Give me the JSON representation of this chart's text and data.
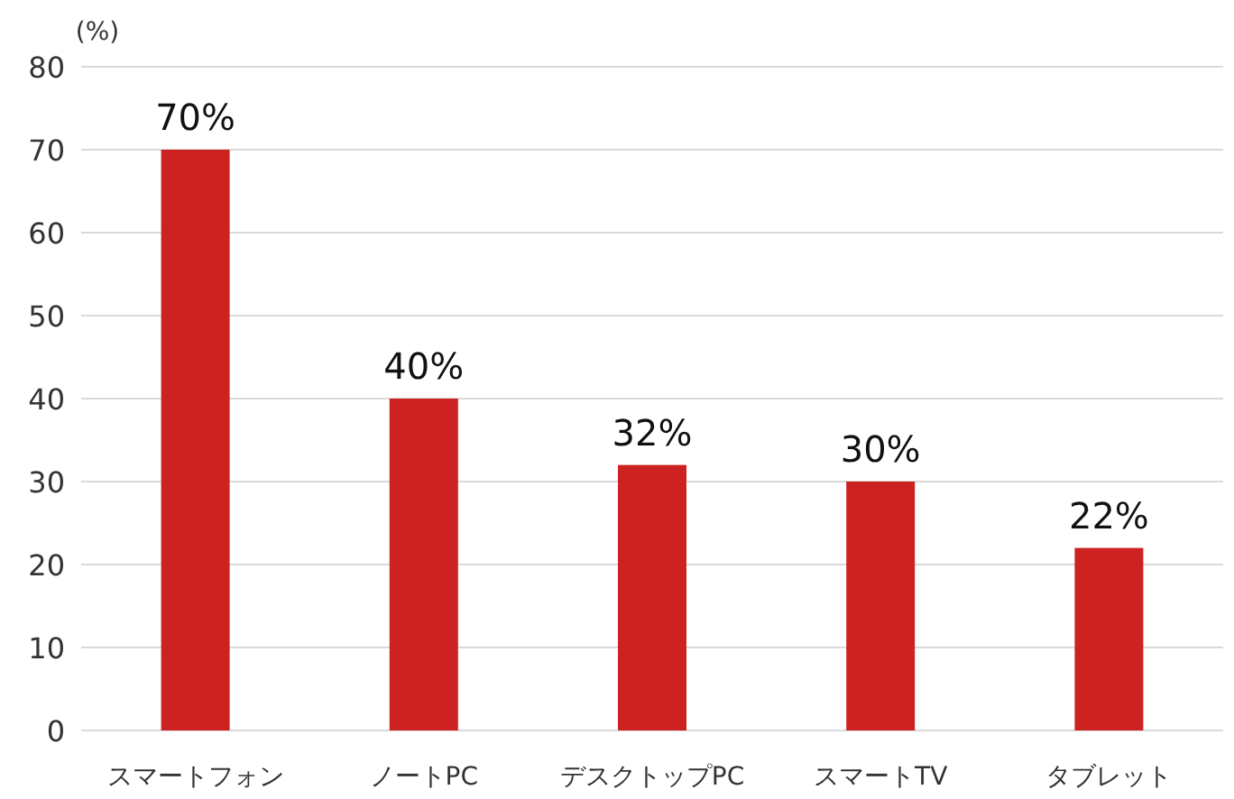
{
  "chart_data": {
    "type": "bar",
    "ylabel": "(%)",
    "categories": [
      "スマートフォン",
      "ノートPC",
      "デスクトップPC",
      "スマートTV",
      "タブレット"
    ],
    "values": [
      70,
      40,
      32,
      30,
      22
    ],
    "value_labels": [
      "70%",
      "40%",
      "32%",
      "30%",
      "22%"
    ],
    "color": "#cc2222",
    "ylim": [
      0,
      80
    ],
    "yticks": [
      0,
      10,
      20,
      30,
      40,
      50,
      60,
      70,
      80
    ],
    "grid": "y"
  }
}
